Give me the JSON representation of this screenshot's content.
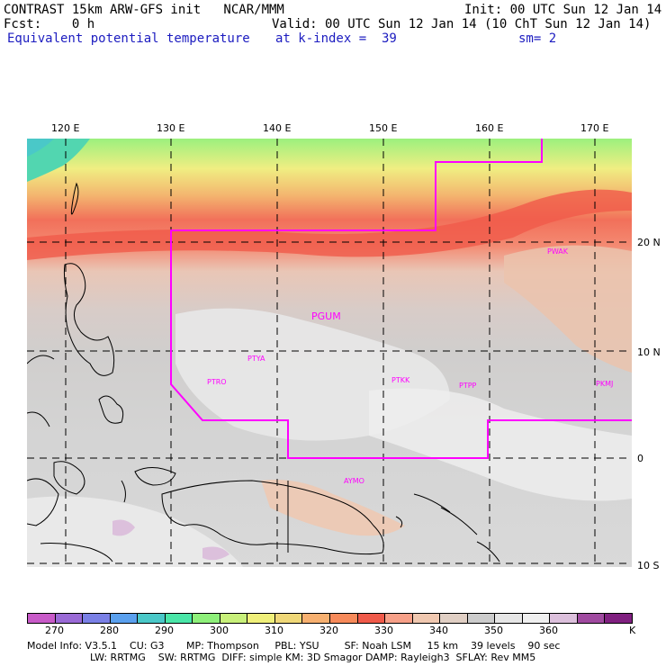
{
  "header": {
    "line1_left": "CONTRAST 15km ARW-GFS init   NCAR/MMM",
    "line1_right": "Init: 00 UTC Sun 12 Jan 14",
    "line2_left": "Fcst:    0 h",
    "line2_right": "Valid: 00 UTC Sun 12 Jan 14 (10 ChT Sun 12 Jan 14)",
    "line3_field": "Equivalent potential temperature",
    "line3_level": "at k-index =  39",
    "line3_smooth": "sm= 2"
  },
  "axes": {
    "lon_labels": [
      "120 E",
      "130 E",
      "140 E",
      "150 E",
      "160 E",
      "170 E"
    ],
    "lat_labels": [
      "20 N",
      "10 N",
      "0",
      "10 S"
    ]
  },
  "stations": [
    {
      "name": "PWAK"
    },
    {
      "name": "PGUM"
    },
    {
      "name": "PTYA"
    },
    {
      "name": "PTRO"
    },
    {
      "name": "PTKK"
    },
    {
      "name": "PTPP"
    },
    {
      "name": "PKMJ"
    },
    {
      "name": "AYMO"
    }
  ],
  "colorbar": {
    "colors": [
      "#c85ac8",
      "#9a6ad6",
      "#7a80e6",
      "#5aa0ee",
      "#4ac8c8",
      "#4ae6a8",
      "#8ef07a",
      "#c8f07a",
      "#f0f07a",
      "#f0d878",
      "#f7b070",
      "#f78a5a",
      "#f05a4a",
      "#f7a088",
      "#f0c8b0",
      "#e0cfc4",
      "#cccccc",
      "#e6e6e6",
      "#f0f0f0",
      "#dcc0dc",
      "#a04aa0",
      "#802080"
    ],
    "labels": [
      "270",
      "280",
      "290",
      "300",
      "310",
      "320",
      "330",
      "340",
      "350",
      "360"
    ],
    "unit": "K"
  },
  "footer": {
    "line1": "Model Info: V3.5.1    CU: G3       MP: Thompson     PBL: YSU        SF: Noah LSM     15 km    39 levels    90 sec",
    "line2": "LW: RRTMG    SW: RRTMG  DIFF: simple KM: 3D Smagor DAMP: Rayleigh3  SFLAY: Rev MM5"
  }
}
